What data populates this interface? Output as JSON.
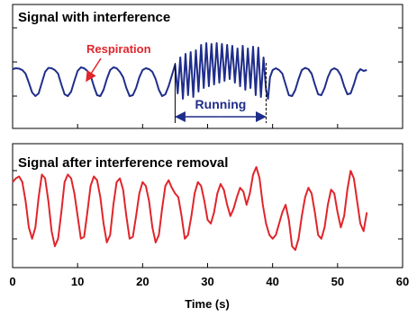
{
  "chart_data": [
    {
      "type": "line",
      "title": "Signal with interference",
      "xlim": [
        0,
        60
      ],
      "grid": false,
      "colors": {
        "line": "#1f2d8a",
        "annotation_red": "#e0252b",
        "annotation_blue": "#1f2d8a"
      },
      "series": [
        {
          "x": [
            0,
            0.5,
            1,
            1.5,
            2,
            2.5,
            3,
            3.5,
            4,
            4.5,
            5,
            5.5,
            6,
            6.5,
            7,
            7.5,
            8,
            8.5,
            9,
            9.5,
            10,
            10.5,
            11,
            11.5,
            12,
            12.5,
            13,
            13.5,
            14,
            14.5,
            15,
            15.5,
            16,
            16.5,
            17,
            17.5,
            18,
            18.5,
            19,
            19.5,
            20,
            20.5,
            21,
            21.5,
            22,
            22.5,
            23,
            23.5,
            24,
            24.5,
            25,
            25.4,
            25.8,
            26.2,
            26.6,
            27,
            27.4,
            27.8,
            28.2,
            28.6,
            29,
            29.4,
            29.8,
            30.2,
            30.6,
            31,
            31.4,
            31.8,
            32.2,
            32.6,
            33,
            33.4,
            33.8,
            34.2,
            34.6,
            35,
            35.4,
            35.8,
            36.2,
            36.6,
            37,
            37.4,
            37.8,
            38.2,
            38.6,
            39,
            39.3,
            39.6,
            40,
            40.5,
            41,
            41.5,
            42,
            42.5,
            43,
            43.5,
            44,
            44.5,
            45,
            45.5,
            46,
            46.5,
            47,
            47.5,
            48,
            48.5,
            49,
            49.5,
            50,
            50.5,
            51,
            51.5,
            52,
            52.5,
            53,
            53.5,
            54,
            54.5
          ],
          "y": [
            0.55,
            0.6,
            0.58,
            0.5,
            0.3,
            -0.2,
            -0.75,
            -0.95,
            -0.8,
            -0.2,
            0.4,
            0.62,
            0.6,
            0.5,
            0.3,
            -0.3,
            -0.85,
            -0.95,
            -0.7,
            -0.1,
            0.45,
            0.65,
            0.6,
            0.45,
            0.2,
            -0.4,
            -0.9,
            -0.95,
            -0.6,
            0.0,
            0.5,
            0.65,
            0.6,
            0.4,
            0.1,
            -0.5,
            -0.95,
            -0.9,
            -0.5,
            0.1,
            0.5,
            0.6,
            0.55,
            0.4,
            0.0,
            -0.6,
            -0.95,
            -0.85,
            -0.4,
            0.2,
            0.8,
            -0.8,
            1.2,
            -1.1,
            1.4,
            -0.9,
            1.5,
            -1.0,
            1.6,
            -0.7,
            1.9,
            -0.5,
            2.0,
            -0.4,
            1.95,
            -0.3,
            2.0,
            -0.2,
            1.95,
            -0.1,
            1.9,
            0.0,
            1.85,
            -0.2,
            1.7,
            -0.4,
            1.85,
            -0.6,
            1.7,
            -0.5,
            1.8,
            -0.9,
            1.75,
            -1.0,
            1.2,
            -0.6,
            -1.1,
            0.1,
            0.5,
            0.6,
            0.5,
            0.3,
            -0.3,
            -0.9,
            -0.95,
            -0.6,
            0.0,
            0.5,
            0.62,
            0.55,
            0.3,
            -0.3,
            -0.85,
            -0.9,
            -0.5,
            0.1,
            0.5,
            0.6,
            0.5,
            0.2,
            -0.4,
            -0.85,
            -0.8,
            -0.3,
            0.3,
            0.55,
            0.45,
            0.5
          ]
        }
      ],
      "annotations": {
        "respiration": "Respiration",
        "running": "Running"
      },
      "running_span": [
        25,
        39
      ]
    },
    {
      "type": "line",
      "title": "Signal after interference removal",
      "xlabel": "Time (s)",
      "xlim": [
        0,
        60
      ],
      "xticks": [
        0,
        10,
        20,
        30,
        40,
        50,
        60
      ],
      "grid": false,
      "colors": {
        "line": "#e0252b"
      },
      "series": [
        {
          "x": [
            0,
            0.5,
            1,
            1.5,
            2,
            2.5,
            3,
            3.5,
            4,
            4.5,
            5,
            5.5,
            6,
            6.5,
            7,
            7.5,
            8,
            8.5,
            9,
            9.5,
            10,
            10.5,
            11,
            11.5,
            12,
            12.5,
            13,
            13.5,
            14,
            14.5,
            15,
            15.5,
            16,
            16.5,
            17,
            17.5,
            18,
            18.5,
            19,
            19.5,
            20,
            20.5,
            21,
            21.5,
            22,
            22.5,
            23,
            23.5,
            24,
            24.5,
            25,
            25.5,
            26,
            26.5,
            27,
            27.5,
            28,
            28.5,
            29,
            29.5,
            30,
            30.5,
            31,
            31.5,
            32,
            32.5,
            33,
            33.5,
            34,
            34.5,
            35,
            35.5,
            36,
            36.5,
            37,
            37.5,
            38,
            38.5,
            39,
            39.5,
            40,
            40.5,
            41,
            41.5,
            42,
            42.5,
            43,
            43.5,
            44,
            44.5,
            45,
            45.5,
            46,
            46.5,
            47,
            47.5,
            48,
            48.5,
            49,
            49.5,
            50,
            50.5,
            51,
            51.5,
            52,
            52.5,
            53,
            53.5,
            54,
            54.5
          ],
          "y": [
            0.6,
            0.7,
            0.75,
            0.6,
            0.1,
            -0.6,
            -0.9,
            -0.6,
            0.2,
            0.8,
            0.7,
            0.1,
            -0.7,
            -1.1,
            -0.9,
            -0.2,
            0.6,
            0.8,
            0.7,
            0.3,
            -0.3,
            -0.9,
            -0.85,
            -0.2,
            0.5,
            0.75,
            0.65,
            0.2,
            -0.5,
            -1.0,
            -0.8,
            0.0,
            0.6,
            0.7,
            0.4,
            -0.3,
            -0.9,
            -0.85,
            -0.3,
            0.3,
            0.6,
            0.5,
            0.1,
            -0.6,
            -1.0,
            -0.8,
            -0.1,
            0.5,
            0.65,
            0.45,
            0.3,
            0.2,
            -0.3,
            -0.9,
            -0.8,
            -0.3,
            0.3,
            0.6,
            0.5,
            0.1,
            -0.4,
            -0.5,
            -0.2,
            0.3,
            0.55,
            0.4,
            0.0,
            -0.3,
            -0.1,
            0.2,
            0.45,
            0.35,
            0.0,
            0.3,
            0.8,
            1.0,
            0.7,
            0.0,
            -0.5,
            -0.8,
            -0.9,
            -0.8,
            -0.5,
            -0.2,
            0.0,
            -0.4,
            -1.1,
            -1.2,
            -0.9,
            -0.3,
            0.2,
            0.45,
            0.3,
            -0.2,
            -0.8,
            -0.9,
            -0.6,
            0.0,
            0.4,
            0.3,
            -0.2,
            -0.6,
            -0.3,
            0.4,
            0.9,
            0.7,
            0.1,
            -0.5,
            -0.7,
            -0.2
          ]
        }
      ]
    }
  ]
}
